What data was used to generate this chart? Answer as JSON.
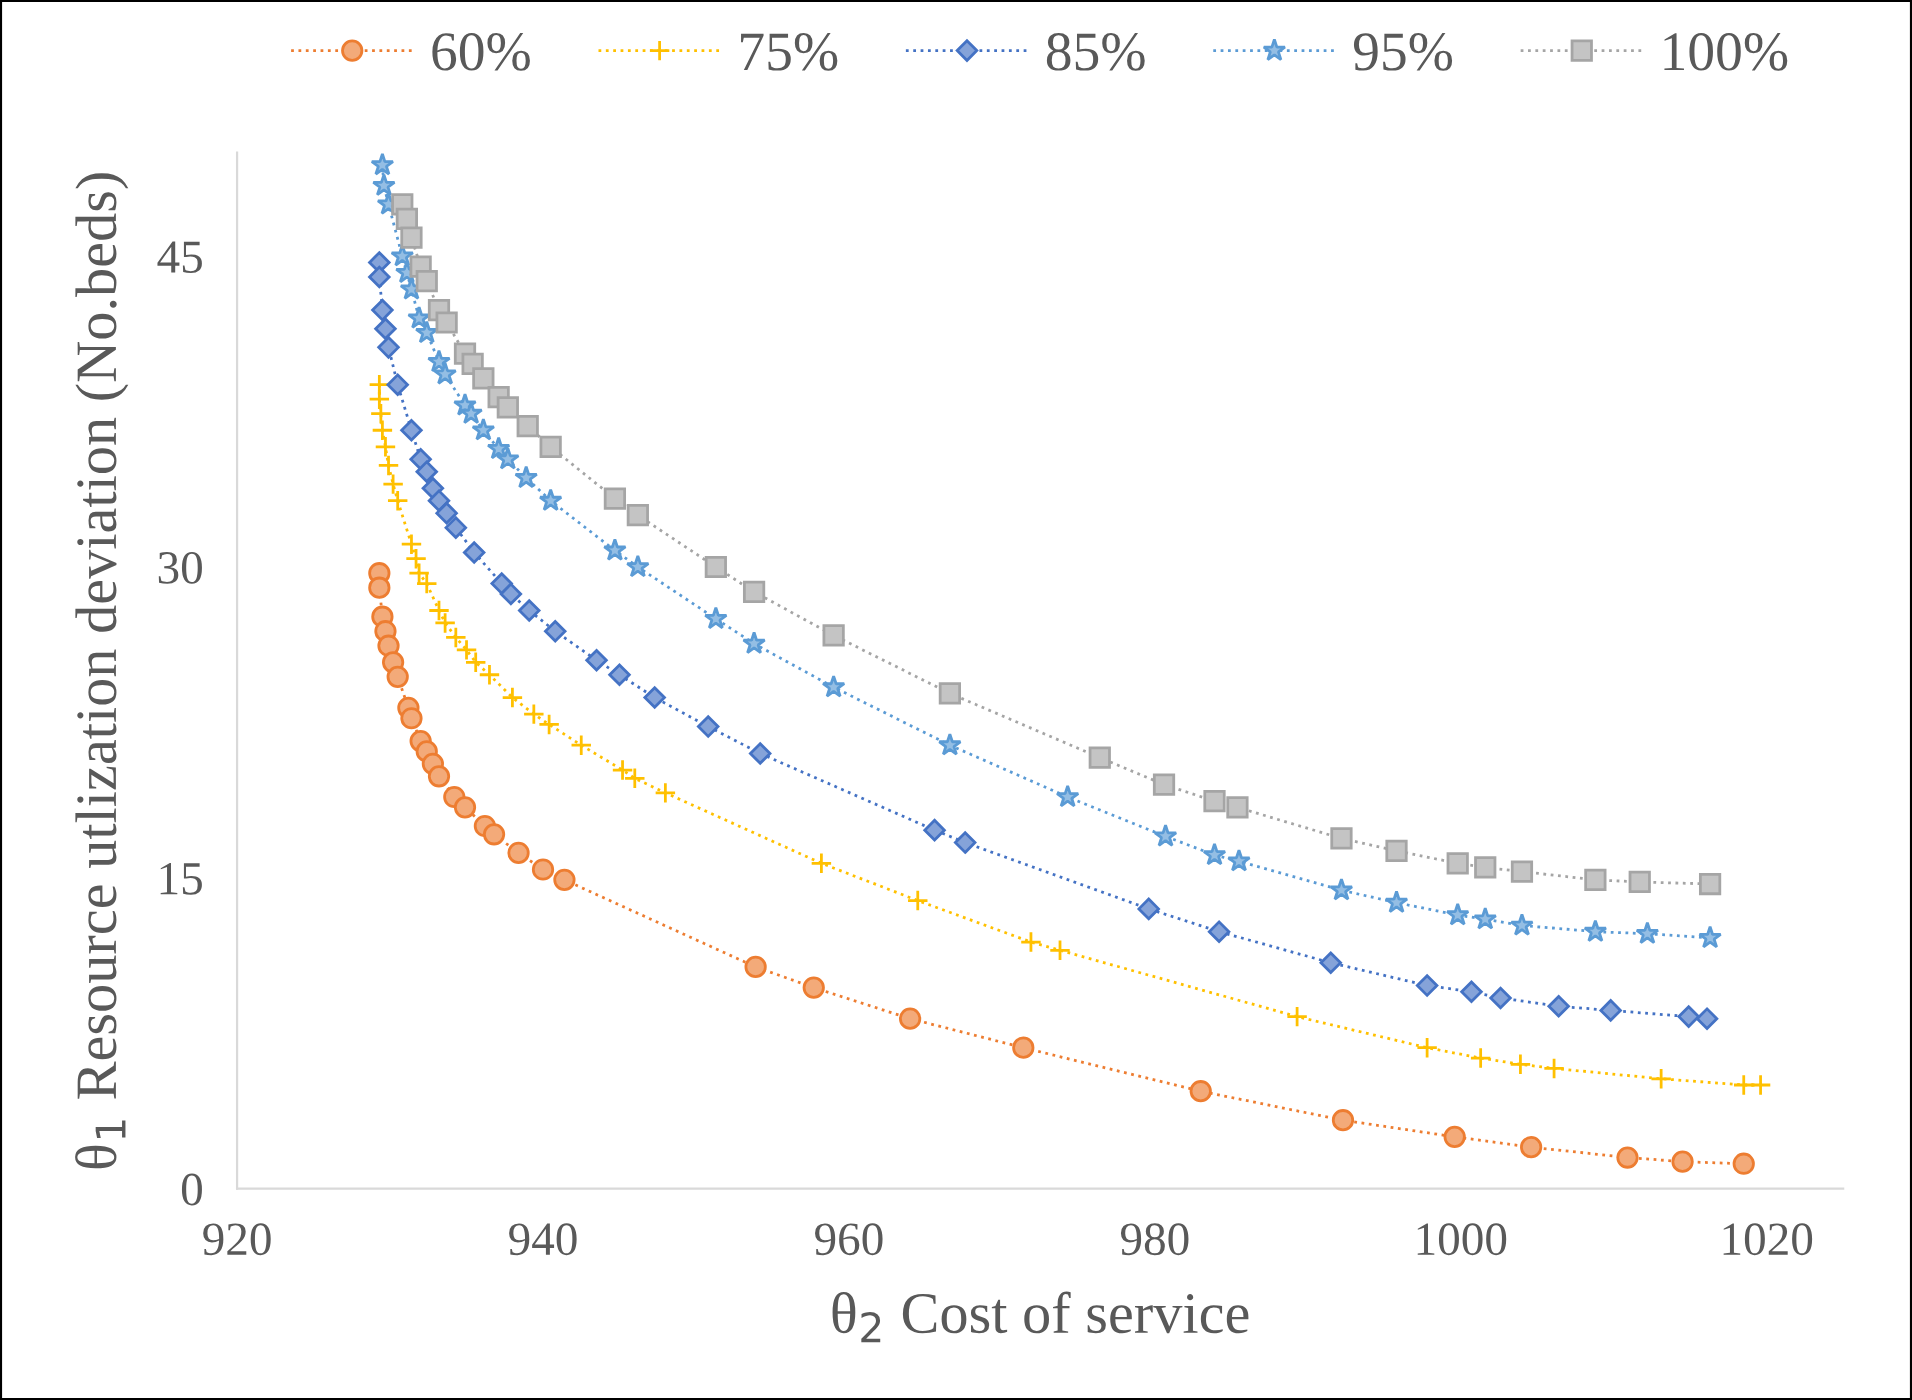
{
  "chart_data": {
    "type": "line",
    "xlabel": "θ$_{2}$ Cost of service",
    "ylabel": "θ$_{1}$ Resource utlization deviation (No.beds)",
    "xlim": [
      920,
      1025
    ],
    "xticks": [
      920,
      940,
      960,
      980,
      1000,
      1020
    ],
    "ylim": [
      0,
      50
    ],
    "yticks": [
      0,
      15,
      30,
      45
    ],
    "grid": false,
    "legend": "top",
    "line_style": "dotted",
    "series": [
      {
        "name": "60%",
        "color": "#ed7d31",
        "marker": "circle",
        "x": [
          929.3,
          929.3,
          929.5,
          929.7,
          929.9,
          930.2,
          930.5,
          931.2,
          931.4,
          932.0,
          932.4,
          932.8,
          933.2,
          934.2,
          934.9,
          936.2,
          936.8,
          938.4,
          940.0,
          941.4,
          953.9,
          957.7,
          964.0,
          971.4,
          983.0,
          992.3,
          999.6,
          1004.6,
          1010.9,
          1014.5,
          1018.5
        ],
        "values": [
          29.7,
          29.0,
          27.6,
          26.9,
          26.2,
          25.4,
          24.7,
          23.2,
          22.7,
          21.6,
          21.1,
          20.5,
          19.9,
          18.9,
          18.4,
          17.5,
          17.1,
          16.2,
          15.4,
          14.9,
          10.7,
          9.7,
          8.2,
          6.8,
          4.7,
          3.3,
          2.5,
          2.0,
          1.5,
          1.3,
          1.2
        ]
      },
      {
        "name": "75%",
        "color": "#ffc000",
        "marker": "cross",
        "x": [
          929.3,
          929.3,
          929.4,
          929.5,
          929.7,
          929.9,
          930.2,
          930.5,
          931.4,
          931.7,
          931.9,
          932.4,
          933.2,
          933.6,
          934.3,
          935.0,
          935.6,
          936.5,
          938.0,
          939.4,
          940.4,
          942.5,
          945.2,
          946.0,
          948.0,
          958.2,
          964.5,
          971.9,
          973.8,
          989.3,
          997.8,
          1001.3,
          1003.9,
          1006.1,
          1013.1,
          1018.5,
          1019.6
        ],
        "values": [
          38.8,
          38.1,
          37.4,
          36.6,
          35.8,
          34.9,
          34.0,
          33.2,
          31.1,
          30.4,
          29.7,
          29.2,
          27.9,
          27.3,
          26.6,
          26.0,
          25.4,
          24.8,
          23.7,
          22.9,
          22.4,
          21.4,
          20.2,
          19.8,
          19.1,
          15.7,
          13.9,
          11.9,
          11.5,
          8.3,
          6.8,
          6.3,
          6.0,
          5.8,
          5.3,
          5.0,
          5.0
        ]
      },
      {
        "name": "85%",
        "color": "#4472c4",
        "marker": "diamond",
        "x": [
          929.3,
          929.3,
          929.5,
          929.7,
          929.9,
          930.5,
          931.4,
          932.0,
          932.4,
          932.8,
          933.2,
          933.7,
          934.3,
          935.5,
          937.3,
          937.9,
          939.1,
          940.8,
          943.5,
          945.0,
          947.3,
          950.8,
          954.2,
          965.6,
          967.6,
          979.6,
          984.2,
          991.5,
          997.8,
          1000.7,
          1002.6,
          1006.4,
          1009.8,
          1014.9,
          1016.1
        ],
        "values": [
          44.7,
          44.0,
          42.4,
          41.5,
          40.6,
          38.8,
          36.6,
          35.2,
          34.6,
          33.8,
          33.2,
          32.6,
          31.9,
          30.7,
          29.2,
          28.7,
          27.9,
          26.9,
          25.5,
          24.8,
          23.7,
          22.3,
          21.0,
          17.3,
          16.7,
          13.5,
          12.4,
          10.9,
          9.8,
          9.5,
          9.2,
          8.8,
          8.6,
          8.3,
          8.2
        ]
      },
      {
        "name": "95%",
        "color": "#5b9bd5",
        "marker": "star",
        "x": [
          929.5,
          929.6,
          929.9,
          930.8,
          931.1,
          931.4,
          931.9,
          932.4,
          933.2,
          933.6,
          934.9,
          935.3,
          936.1,
          937.1,
          937.7,
          938.9,
          940.5,
          944.7,
          946.2,
          951.3,
          953.8,
          959.0,
          966.6,
          974.3,
          980.7,
          983.9,
          985.5,
          992.2,
          995.8,
          999.8,
          1001.6,
          1004.0,
          1008.8,
          1012.2,
          1016.3
        ],
        "values": [
          49.4,
          48.4,
          47.5,
          45.0,
          44.2,
          43.4,
          42.0,
          41.3,
          39.9,
          39.3,
          37.8,
          37.4,
          36.6,
          35.7,
          35.2,
          34.3,
          33.2,
          30.8,
          30.0,
          27.5,
          26.3,
          24.2,
          21.4,
          18.9,
          17.0,
          16.1,
          15.8,
          14.4,
          13.8,
          13.2,
          13.0,
          12.7,
          12.4,
          12.3,
          12.1
        ]
      },
      {
        "name": "100%",
        "color": "#a5a5a5",
        "marker": "square",
        "x": [
          930.8,
          931.1,
          931.4,
          932.0,
          932.4,
          933.2,
          933.7,
          934.9,
          935.4,
          936.1,
          937.1,
          937.7,
          939.0,
          940.5,
          944.7,
          946.2,
          951.3,
          953.8,
          959.0,
          966.6,
          976.4,
          980.6,
          983.9,
          985.4,
          992.2,
          995.8,
          999.8,
          1001.6,
          1004.0,
          1008.8,
          1011.7,
          1016.3
        ],
        "values": [
          47.5,
          46.8,
          45.9,
          44.5,
          43.8,
          42.4,
          41.8,
          40.3,
          39.8,
          39.1,
          38.2,
          37.7,
          36.8,
          35.8,
          33.3,
          32.5,
          30.0,
          28.8,
          26.7,
          23.9,
          20.8,
          19.5,
          18.7,
          18.4,
          16.9,
          16.3,
          15.7,
          15.5,
          15.3,
          14.9,
          14.8,
          14.7
        ]
      }
    ]
  }
}
